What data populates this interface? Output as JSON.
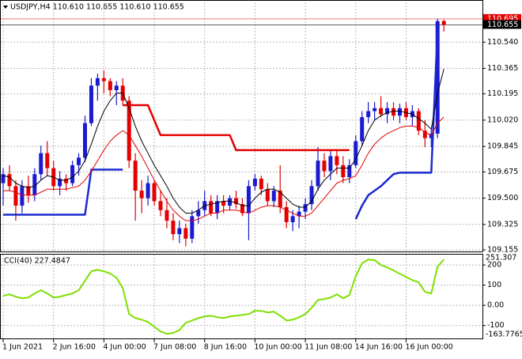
{
  "chart_data": [
    {
      "type": "candlestick",
      "title": "USDJPY,H4  110.610 110.655 110.610 110.655",
      "categories": [
        "1 Jun 2021",
        null,
        null,
        null,
        null,
        null,
        null,
        null,
        "2 Jun 16:00",
        null,
        null,
        null,
        null,
        null,
        null,
        null,
        "4 Jun 00:00",
        null,
        null,
        null,
        null,
        null,
        null,
        null,
        "7 Jun 08:00",
        null,
        null,
        null,
        null,
        null,
        null,
        null,
        "8 Jun 16:00",
        null,
        null,
        null,
        null,
        null,
        null,
        null,
        "10 Jun 00:00",
        null,
        null,
        null,
        null,
        null,
        null,
        null,
        "11 Jun 08:00",
        null,
        null,
        null,
        null,
        null,
        null,
        null,
        "14 Jun 16:00",
        null,
        null,
        null,
        null,
        null,
        null,
        null,
        "16 Jun 00:00",
        null,
        null,
        null,
        null,
        null,
        null
      ],
      "open": [
        109.6,
        109.66,
        109.58,
        109.45,
        109.58,
        109.52,
        109.66,
        109.8,
        109.7,
        109.58,
        109.63,
        109.6,
        109.72,
        109.77,
        110.0,
        110.25,
        110.3,
        110.28,
        110.22,
        110.25,
        110.15,
        109.75,
        109.55,
        109.5,
        109.6,
        109.48,
        109.42,
        109.35,
        109.26,
        109.3,
        109.23,
        109.38,
        109.42,
        109.48,
        109.4,
        109.48,
        109.45,
        109.5,
        109.46,
        109.4,
        109.58,
        109.63,
        109.56,
        109.48,
        109.55,
        109.44,
        109.34,
        109.38,
        109.41,
        109.46,
        109.58,
        109.75,
        109.68,
        109.78,
        109.72,
        109.64,
        109.72,
        109.88,
        110.04,
        110.08,
        110.1,
        110.06,
        110.1,
        110.05,
        110.1,
        110.04,
        110.08,
        109.95,
        109.9,
        109.93,
        110.68
      ],
      "high": [
        109.7,
        109.72,
        109.62,
        109.62,
        109.65,
        109.7,
        109.85,
        109.88,
        109.75,
        109.68,
        109.66,
        109.75,
        109.8,
        110.05,
        110.3,
        110.33,
        110.35,
        110.3,
        110.28,
        110.3,
        110.18,
        109.8,
        109.62,
        109.65,
        109.62,
        109.55,
        109.5,
        109.4,
        109.35,
        109.33,
        109.42,
        109.48,
        109.55,
        109.52,
        109.52,
        109.52,
        109.52,
        109.55,
        109.5,
        109.62,
        109.66,
        109.65,
        109.6,
        109.58,
        109.72,
        109.48,
        109.42,
        109.45,
        109.5,
        109.62,
        109.84,
        109.8,
        109.82,
        109.82,
        109.78,
        109.76,
        109.92,
        110.08,
        110.14,
        110.14,
        110.18,
        110.14,
        110.14,
        110.13,
        110.14,
        110.12,
        110.1,
        110.02,
        109.96,
        110.695,
        110.69
      ],
      "low": [
        109.45,
        109.55,
        109.35,
        109.4,
        109.47,
        109.48,
        109.62,
        109.65,
        109.55,
        109.52,
        109.55,
        109.58,
        109.65,
        109.74,
        109.98,
        110.15,
        110.2,
        110.18,
        110.12,
        110.12,
        109.7,
        109.35,
        109.4,
        109.45,
        109.45,
        109.38,
        109.3,
        109.22,
        109.2,
        109.18,
        109.2,
        109.33,
        109.38,
        109.38,
        109.36,
        109.4,
        109.42,
        109.43,
        109.38,
        109.22,
        109.55,
        109.52,
        109.45,
        109.44,
        109.4,
        109.3,
        109.28,
        109.3,
        109.36,
        109.42,
        109.55,
        109.64,
        109.62,
        109.66,
        109.6,
        109.6,
        109.7,
        109.85,
        110.0,
        110.02,
        110.04,
        110.0,
        110.02,
        110.0,
        110.02,
        109.98,
        109.92,
        109.84,
        109.84,
        109.9,
        110.61
      ],
      "close": [
        109.66,
        109.58,
        109.45,
        109.58,
        109.52,
        109.66,
        109.8,
        109.7,
        109.58,
        109.63,
        109.6,
        109.72,
        109.77,
        110.0,
        110.25,
        110.3,
        110.28,
        110.22,
        110.25,
        110.15,
        109.75,
        109.55,
        109.5,
        109.6,
        109.48,
        109.42,
        109.35,
        109.26,
        109.3,
        109.23,
        109.38,
        109.42,
        109.48,
        109.4,
        109.48,
        109.45,
        109.5,
        109.46,
        109.4,
        109.58,
        109.63,
        109.56,
        109.48,
        109.55,
        109.44,
        109.34,
        109.38,
        109.41,
        109.46,
        109.58,
        109.75,
        109.68,
        109.78,
        109.72,
        109.64,
        109.72,
        109.88,
        110.04,
        110.08,
        110.1,
        110.06,
        110.1,
        110.05,
        110.1,
        110.04,
        110.08,
        109.95,
        109.9,
        109.93,
        110.68,
        110.655
      ],
      "up_color": "#1a1ad2",
      "down_color": "#e40000",
      "lines": [
        {
          "color": "#e40000",
          "width": 2.5,
          "values": [
            null,
            null,
            null,
            null,
            null,
            null,
            null,
            null,
            null,
            null,
            null,
            null,
            null,
            null,
            null,
            null,
            null,
            null,
            null,
            110.12,
            110.12,
            110.12,
            110.12,
            110.12,
            110.02,
            109.92,
            109.92,
            109.92,
            109.92,
            109.92,
            109.92,
            109.92,
            109.92,
            109.92,
            109.92,
            109.92,
            109.92,
            109.82,
            109.82,
            109.82,
            109.82,
            109.82,
            109.82,
            109.82,
            109.82,
            109.82,
            109.82,
            109.82,
            109.82,
            109.82,
            109.82,
            109.82,
            109.82,
            109.82,
            109.82,
            109.82,
            null,
            null,
            null,
            null,
            null,
            null,
            null,
            null,
            null,
            null,
            null,
            null,
            null,
            null,
            null
          ]
        },
        {
          "color": "#1a2ad0",
          "width": 2.5,
          "values": [
            109.39,
            109.39,
            109.39,
            109.39,
            109.39,
            109.39,
            109.39,
            109.39,
            109.39,
            109.39,
            109.39,
            109.39,
            109.39,
            109.39,
            109.69,
            109.69,
            109.69,
            109.69,
            109.69,
            109.69,
            null,
            null,
            null,
            null,
            null,
            null,
            null,
            null,
            null,
            null,
            null,
            null,
            null,
            null,
            null,
            null,
            null,
            null,
            null,
            null,
            null,
            null,
            null,
            null,
            null,
            null,
            null,
            null,
            null,
            null,
            null,
            null,
            null,
            null,
            null,
            null,
            109.36,
            109.45,
            109.52,
            109.55,
            109.58,
            109.62,
            109.66,
            109.67,
            109.67,
            109.67,
            109.67,
            109.67,
            109.67,
            110.62,
            null
          ]
        },
        {
          "color": "#000000",
          "width": 1,
          "values": [
            109.65,
            109.64,
            109.6,
            109.58,
            109.57,
            109.58,
            109.62,
            109.65,
            109.64,
            109.62,
            109.62,
            109.64,
            109.68,
            109.75,
            109.86,
            109.98,
            110.08,
            110.15,
            110.2,
            110.2,
            110.1,
            109.98,
            109.88,
            109.8,
            109.72,
            109.65,
            109.58,
            109.5,
            109.44,
            109.4,
            109.4,
            109.42,
            109.45,
            109.46,
            109.47,
            109.48,
            109.48,
            109.47,
            109.45,
            109.45,
            109.5,
            109.54,
            109.56,
            109.56,
            109.54,
            109.5,
            109.46,
            109.44,
            109.44,
            109.48,
            109.56,
            109.62,
            109.66,
            109.7,
            109.7,
            109.7,
            109.76,
            109.85,
            109.95,
            110.02,
            110.05,
            110.07,
            110.08,
            110.08,
            110.07,
            110.06,
            110.03,
            110.0,
            109.96,
            110.2,
            110.36
          ]
        },
        {
          "color": "#e40000",
          "width": 1,
          "values": [
            109.55,
            109.55,
            109.54,
            109.52,
            109.52,
            109.52,
            109.54,
            109.56,
            109.56,
            109.56,
            109.56,
            109.57,
            109.58,
            109.62,
            109.68,
            109.75,
            109.82,
            109.88,
            109.92,
            109.95,
            109.92,
            109.85,
            109.78,
            109.7,
            109.62,
            109.55,
            109.48,
            109.42,
            109.38,
            109.35,
            109.35,
            109.36,
            109.38,
            109.4,
            109.4,
            109.42,
            109.42,
            109.42,
            109.41,
            109.4,
            109.42,
            109.44,
            109.45,
            109.45,
            109.44,
            109.42,
            109.4,
            109.38,
            109.38,
            109.4,
            109.45,
            109.5,
            109.55,
            109.6,
            109.62,
            109.63,
            109.65,
            109.72,
            109.8,
            109.86,
            109.9,
            109.93,
            109.95,
            109.97,
            109.98,
            109.98,
            109.97,
            109.94,
            109.92,
            110.0,
            110.04
          ]
        }
      ],
      "levels": [
        {
          "value": 110.695,
          "color": "#e40000"
        },
        {
          "value": 110.655,
          "color": "#000000"
        }
      ],
      "ylim": [
        109.15,
        110.805
      ],
      "yticks": [
        {
          "value": 110.54,
          "label": "110.540"
        },
        110.365,
        110.195,
        {
          "value": 110.02,
          "label": "110.020"
        },
        109.845,
        109.675,
        {
          "value": 109.5,
          "label": "109.500"
        },
        109.325,
        109.155
      ],
      "grid": true
    },
    {
      "type": "line",
      "title": "CCI(40) 227.4847",
      "color": "#7ee000",
      "values": [
        47,
        55,
        43,
        35,
        39,
        59,
        75,
        59,
        39,
        43,
        51,
        59,
        75,
        122,
        169,
        176,
        169,
        157,
        137,
        86,
        -43,
        -63,
        -71,
        -82,
        -106,
        -129,
        -141,
        -137,
        -122,
        -86,
        -75,
        -63,
        -55,
        -51,
        -59,
        -63,
        -55,
        -51,
        -47,
        -43,
        -27,
        -27,
        -35,
        -31,
        -51,
        -75,
        -71,
        -59,
        -43,
        -12,
        27,
        31,
        39,
        55,
        35,
        51,
        145,
        208,
        227,
        224,
        200,
        188,
        173,
        157,
        141,
        125,
        114,
        67,
        59,
        192,
        227.4847
      ],
      "ylim": [
        -163.7765,
        251.307
      ],
      "yticks": [
        200,
        100,
        {
          "value": 0,
          "label": "0.00"
        },
        -100
      ],
      "grid": true
    }
  ]
}
